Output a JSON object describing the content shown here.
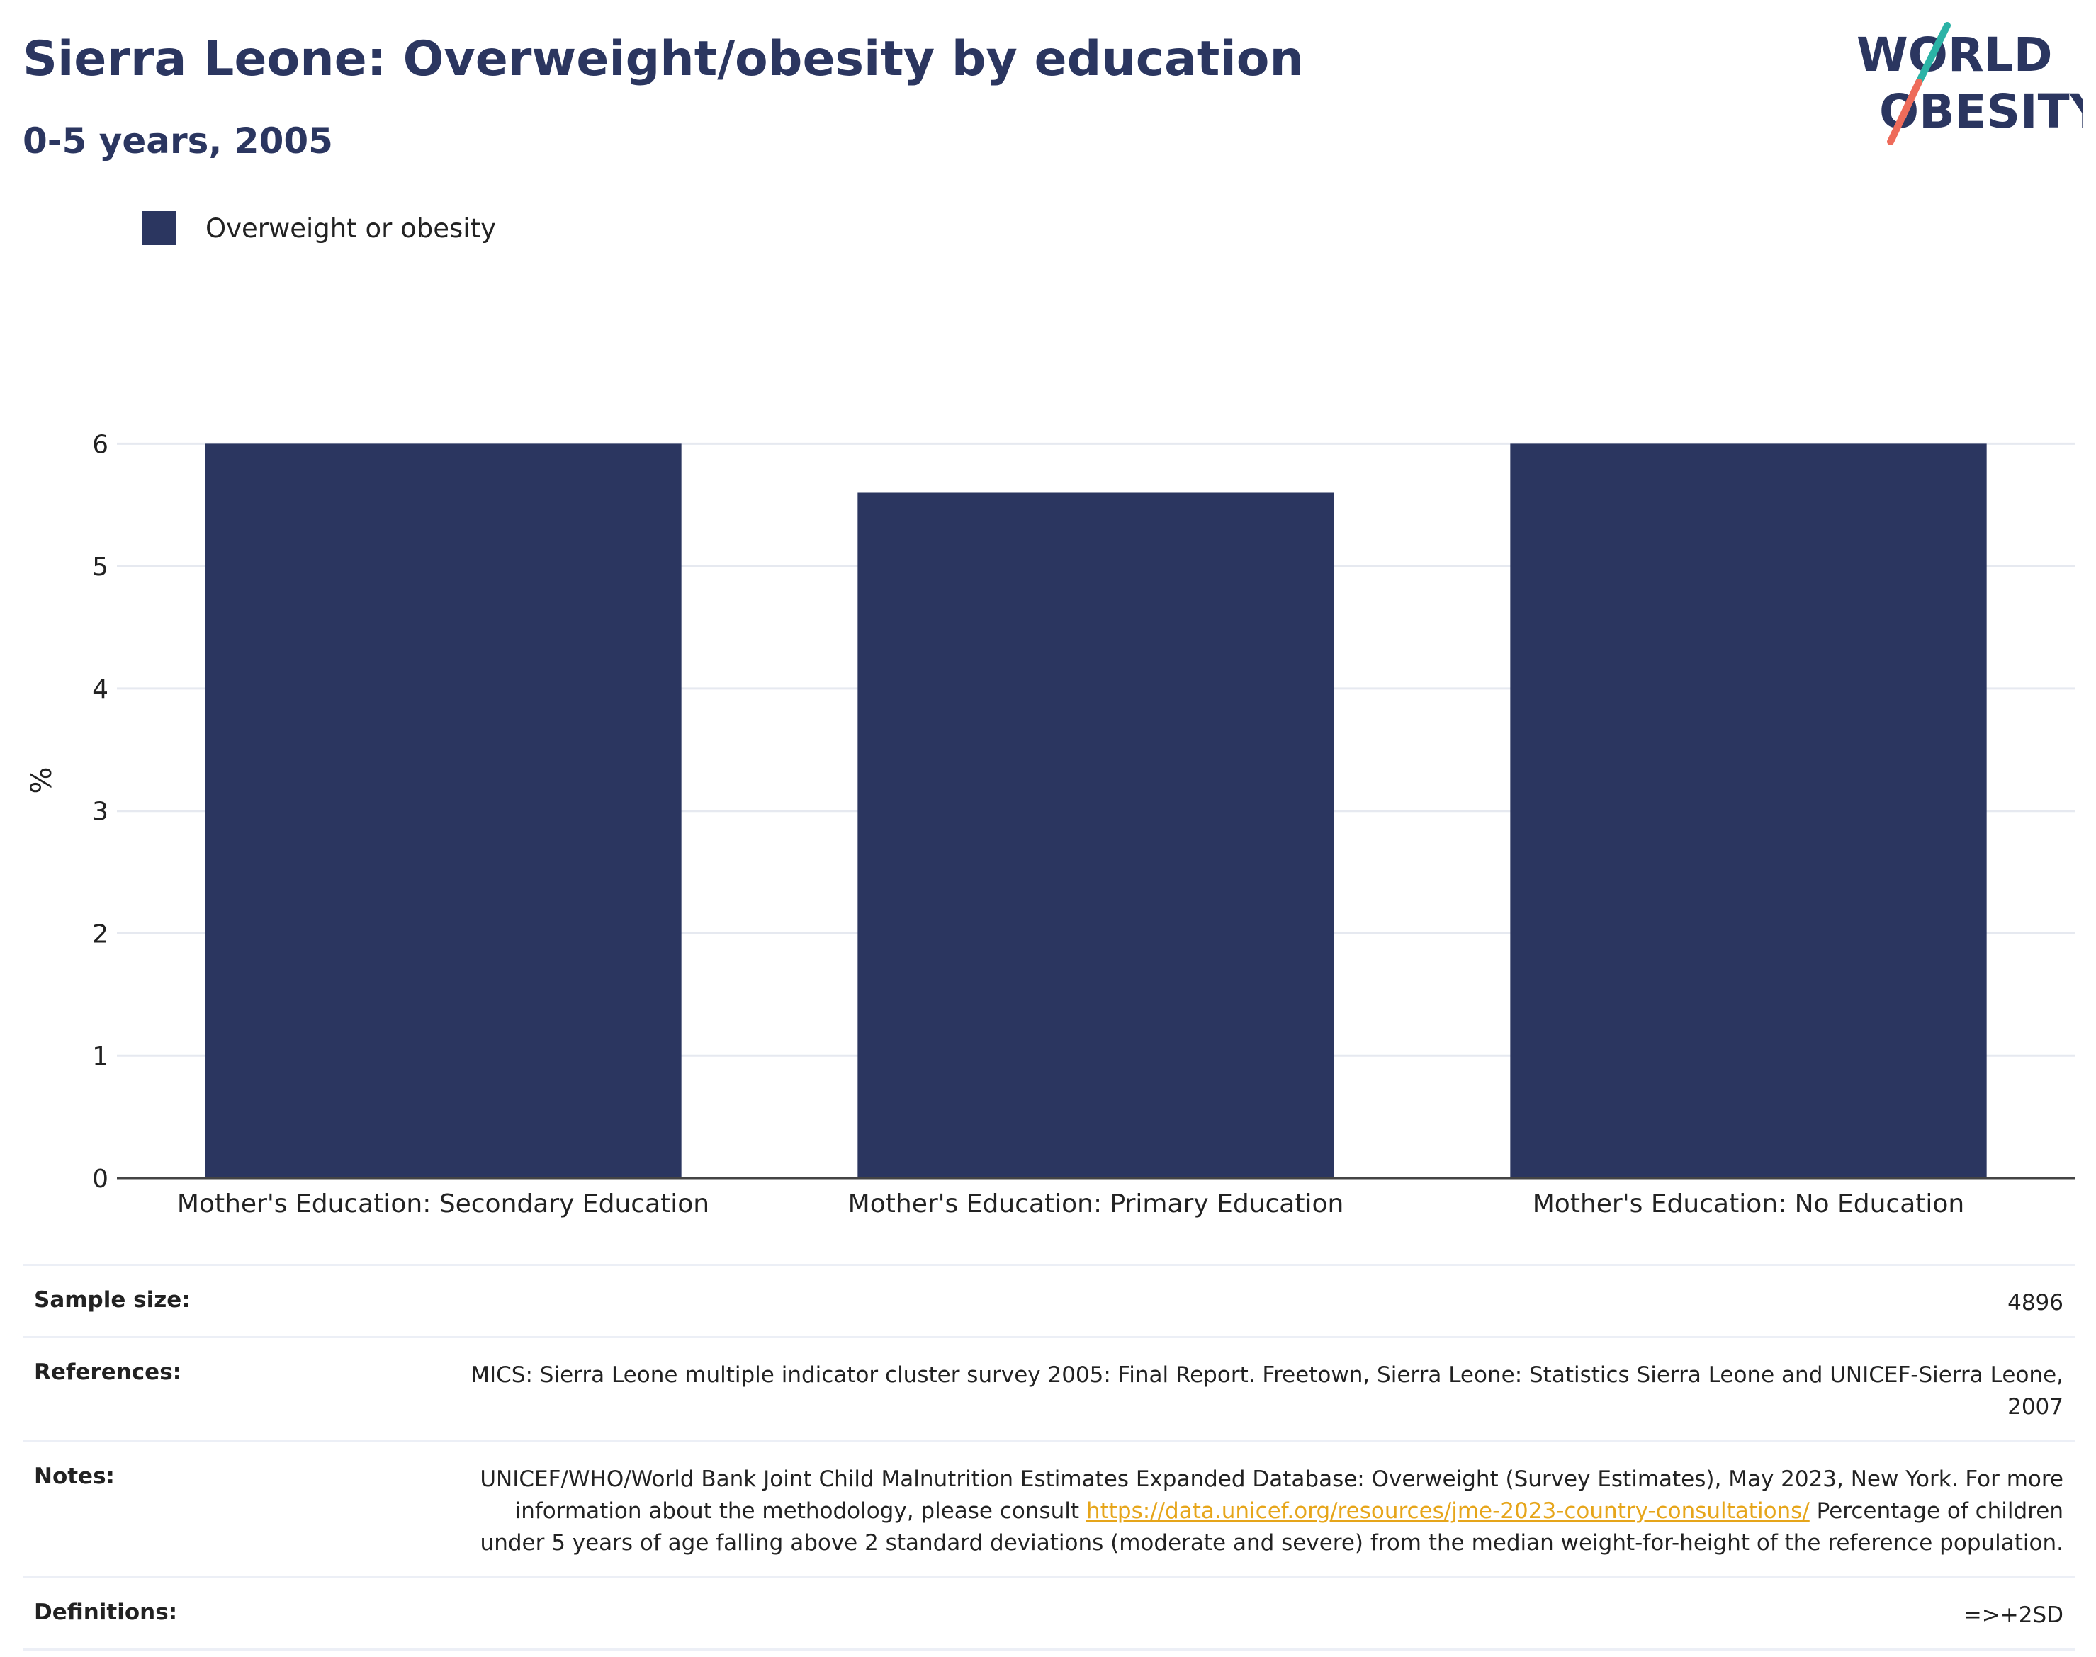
{
  "header": {
    "title": "Sierra Leone: Overweight/obesity by education",
    "subtitle": "0-5 years, 2005"
  },
  "logo": {
    "line1": "WORLD",
    "line2": "OBESITY"
  },
  "colors": {
    "bar": "#2b3660",
    "title": "#2b3660",
    "grid": "#e6e9f0",
    "link": "#e6a51a"
  },
  "chart_data": {
    "type": "bar",
    "title": "Sierra Leone: Overweight/obesity by education",
    "subtitle": "0-5 years, 2005",
    "categories": [
      "Mother's Education: Secondary Education",
      "Mother's Education: Primary Education",
      "Mother's Education: No Education"
    ],
    "series": [
      {
        "name": "Overweight or obesity",
        "values": [
          6.0,
          5.6,
          6.0
        ]
      }
    ],
    "xlabel": "",
    "ylabel": "%",
    "ylim": [
      0,
      6.5
    ],
    "yticks": [
      0,
      1,
      2,
      3,
      4,
      5,
      6
    ],
    "grid": true,
    "legend": "top-left"
  },
  "info": {
    "sample_size_label": "Sample size:",
    "sample_size_value": "4896",
    "references_label": "References:",
    "references_value": "MICS: Sierra Leone multiple indicator cluster survey 2005: Final Report. Freetown, Sierra Leone: Statistics Sierra Leone and UNICEF-Sierra Leone, 2007",
    "notes_label": "Notes:",
    "notes_text_1": "UNICEF/WHO/World Bank Joint Child Malnutrition Estimates Expanded Database: Overweight (Survey Estimates), May 2023, New York. For more information about the methodology, please consult",
    "notes_link": "https://data.unicef.org/resources/jme-2023-country-consultations/",
    "notes_text_2": "Percentage of children under 5 years of age falling above 2 standard deviations (moderate and severe) from the median weight-for-height of the reference population.",
    "definitions_label": "Definitions:",
    "definitions_value": "=>+2SD"
  }
}
